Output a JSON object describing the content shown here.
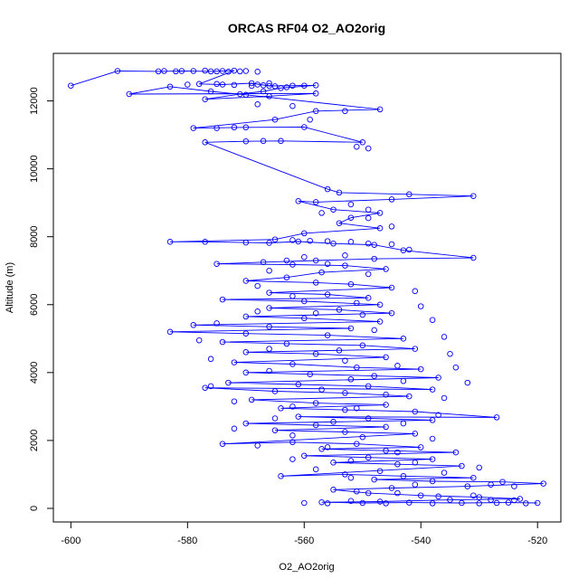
{
  "chart_data": {
    "type": "line",
    "title": "ORCAS RF04 O2_AO2orig",
    "xlabel": "O2_AO2orig",
    "ylabel": "Altitude (m)",
    "xlim": [
      -603,
      -516
    ],
    "ylim": [
      -400,
      13400
    ],
    "xticks": [
      -600,
      -580,
      -560,
      -540,
      -520
    ],
    "yticks": [
      0,
      2000,
      4000,
      6000,
      8000,
      10000,
      12000
    ],
    "grid": false,
    "legend": "none",
    "series_color": "#0000ff",
    "series": [
      {
        "marker": "circle",
        "line": true,
        "points": [
          [
            -600,
            12450
          ],
          [
            -592,
            12880
          ],
          [
            -585,
            12870
          ],
          [
            -581,
            12880
          ],
          [
            -576,
            12870
          ],
          [
            -572,
            12890
          ],
          [
            -578,
            12500
          ],
          [
            -574,
            12480
          ],
          [
            -569,
            12520
          ],
          [
            -566,
            12440
          ],
          [
            -562,
            12450
          ],
          [
            -558,
            12460
          ],
          [
            -564,
            12380
          ],
          [
            -567,
            12280
          ],
          [
            -571,
            12200
          ],
          [
            -577,
            12050
          ],
          [
            -566,
            12140
          ],
          [
            -558,
            12220
          ],
          [
            -590,
            12200
          ],
          [
            -583,
            12420
          ],
          [
            -576,
            12280
          ],
          [
            -570,
            12180
          ],
          [
            -547,
            11750
          ],
          [
            -558,
            11700
          ],
          [
            -565,
            11450
          ],
          [
            -579,
            11200
          ],
          [
            -570,
            11220
          ],
          [
            -560,
            11230
          ],
          [
            -550,
            10780
          ],
          [
            -564,
            10820
          ],
          [
            -570,
            10810
          ],
          [
            -577,
            10780
          ],
          [
            -556,
            9400
          ],
          [
            -554,
            9300
          ],
          [
            -542,
            9250
          ],
          [
            -531,
            9200
          ],
          [
            -545,
            9100
          ],
          [
            -558,
            9020
          ],
          [
            -561,
            9050
          ],
          [
            -555,
            8800
          ],
          [
            -547,
            8700
          ],
          [
            -552,
            8560
          ],
          [
            -554,
            8400
          ],
          [
            -547,
            8250
          ],
          [
            -560,
            8100
          ],
          [
            -565,
            7920
          ],
          [
            -583,
            7850
          ],
          [
            -577,
            7850
          ],
          [
            -570,
            7830
          ],
          [
            -566,
            7820
          ],
          [
            -561,
            7860
          ],
          [
            -555,
            7800
          ],
          [
            -548,
            7760
          ],
          [
            -543,
            7600
          ],
          [
            -531,
            7380
          ],
          [
            -548,
            7350
          ],
          [
            -558,
            7300
          ],
          [
            -567,
            7250
          ],
          [
            -575,
            7200
          ],
          [
            -562,
            7180
          ],
          [
            -553,
            7150
          ],
          [
            -546,
            7050
          ],
          [
            -557,
            6950
          ],
          [
            -563,
            6800
          ],
          [
            -570,
            6700
          ],
          [
            -558,
            6650
          ],
          [
            -552,
            6600
          ],
          [
            -545,
            6500
          ],
          [
            -566,
            6350
          ],
          [
            -556,
            6300
          ],
          [
            -549,
            6200
          ],
          [
            -574,
            6150
          ],
          [
            -560,
            6100
          ],
          [
            -547,
            6000
          ],
          [
            -566,
            5900
          ],
          [
            -554,
            5850
          ],
          [
            -545,
            5750
          ],
          [
            -570,
            5650
          ],
          [
            -560,
            5600
          ],
          [
            -547,
            5500
          ],
          [
            -579,
            5400
          ],
          [
            -566,
            5350
          ],
          [
            -552,
            5300
          ],
          [
            -583,
            5200
          ],
          [
            -570,
            5150
          ],
          [
            -556,
            5100
          ],
          [
            -543,
            5000
          ],
          [
            -574,
            4900
          ],
          [
            -563,
            4850
          ],
          [
            -550,
            4800
          ],
          [
            -541,
            4700
          ],
          [
            -570,
            4600
          ],
          [
            -558,
            4550
          ],
          [
            -546,
            4450
          ],
          [
            -572,
            4300
          ],
          [
            -562,
            4250
          ],
          [
            -551,
            4150
          ],
          [
            -540,
            4100
          ],
          [
            -570,
            4000
          ],
          [
            -559,
            3950
          ],
          [
            -548,
            3900
          ],
          [
            -537,
            3850
          ],
          [
            -573,
            3700
          ],
          [
            -561,
            3650
          ],
          [
            -549,
            3600
          ],
          [
            -538,
            3500
          ],
          [
            -577,
            3550
          ],
          [
            -565,
            3450
          ],
          [
            -553,
            3400
          ],
          [
            -542,
            3300
          ],
          [
            -569,
            3200
          ],
          [
            -558,
            3100
          ],
          [
            -546,
            3050
          ],
          [
            -564,
            2950
          ],
          [
            -553,
            2900
          ],
          [
            -541,
            2850
          ],
          [
            -527,
            2680
          ],
          [
            -561,
            2700
          ],
          [
            -549,
            2650
          ],
          [
            -538,
            2600
          ],
          [
            -570,
            2500
          ],
          [
            -558,
            2450
          ],
          [
            -546,
            2400
          ],
          [
            -565,
            2300
          ],
          [
            -553,
            2250
          ],
          [
            -541,
            2200
          ],
          [
            -574,
            1900
          ],
          [
            -562,
            1950
          ],
          [
            -551,
            1900
          ],
          [
            -540,
            1800
          ],
          [
            -557,
            1750
          ],
          [
            -546,
            1700
          ],
          [
            -534,
            1650
          ],
          [
            -560,
            1550
          ],
          [
            -549,
            1500
          ],
          [
            -538,
            1450
          ],
          [
            -555,
            1350
          ],
          [
            -544,
            1300
          ],
          [
            -533,
            1250
          ],
          [
            -564,
            950
          ],
          [
            -553,
            1000
          ],
          [
            -543,
            950
          ],
          [
            -531,
            900
          ],
          [
            -548,
            850
          ],
          [
            -538,
            800
          ],
          [
            -526,
            780
          ],
          [
            -519,
            730
          ],
          [
            -532,
            650
          ],
          [
            -545,
            600
          ],
          [
            -555,
            550
          ],
          [
            -549,
            450
          ],
          [
            -540,
            380
          ],
          [
            -530,
            330
          ],
          [
            -523,
            280
          ],
          [
            -535,
            250
          ],
          [
            -547,
            200
          ],
          [
            -557,
            180
          ],
          [
            -550,
            160
          ],
          [
            -542,
            170
          ],
          [
            -533,
            160
          ],
          [
            -525,
            170
          ],
          [
            -520,
            160
          ]
        ]
      }
    ],
    "scatter_points": [
      [
        -584,
        12880
      ],
      [
        -582,
        12870
      ],
      [
        -579,
        12880
      ],
      [
        -577,
        12890
      ],
      [
        -575,
        12870
      ],
      [
        -574,
        12880
      ],
      [
        -573,
        12860
      ],
      [
        -571,
        12870
      ],
      [
        -570,
        12880
      ],
      [
        -568,
        12860
      ],
      [
        -580,
        12480
      ],
      [
        -575,
        12500
      ],
      [
        -572,
        12470
      ],
      [
        -569,
        12440
      ],
      [
        -568,
        12480
      ],
      [
        -567,
        12460
      ],
      [
        -565,
        12430
      ],
      [
        -563,
        12400
      ],
      [
        -566,
        12520
      ],
      [
        -560,
        12450
      ],
      [
        -568,
        11900
      ],
      [
        -562,
        11850
      ],
      [
        -553,
        11700
      ],
      [
        -559,
        11450
      ],
      [
        -575,
        11200
      ],
      [
        -572,
        11220
      ],
      [
        -551,
        10650
      ],
      [
        -549,
        10600
      ],
      [
        -567,
        10820
      ],
      [
        -552,
        8950
      ],
      [
        -549,
        8800
      ],
      [
        -557,
        8700
      ],
      [
        -549,
        8550
      ],
      [
        -545,
        8300
      ],
      [
        -562,
        7900
      ],
      [
        -559,
        7880
      ],
      [
        -556,
        7870
      ],
      [
        -552,
        7850
      ],
      [
        -549,
        7800
      ],
      [
        -545,
        7780
      ],
      [
        -542,
        7620
      ],
      [
        -553,
        7450
      ],
      [
        -560,
        7400
      ],
      [
        -563,
        7300
      ],
      [
        -556,
        7200
      ],
      [
        -566,
        7000
      ],
      [
        -549,
        6900
      ],
      [
        -568,
        6550
      ],
      [
        -541,
        6400
      ],
      [
        -562,
        6250
      ],
      [
        -551,
        6050
      ],
      [
        -540,
        5950
      ],
      [
        -568,
        5800
      ],
      [
        -558,
        5750
      ],
      [
        -550,
        5700
      ],
      [
        -538,
        5550
      ],
      [
        -575,
        5450
      ],
      [
        -548,
        5250
      ],
      [
        -536,
        5050
      ],
      [
        -578,
        4950
      ],
      [
        -566,
        4700
      ],
      [
        -554,
        4650
      ],
      [
        -535,
        4550
      ],
      [
        -576,
        4400
      ],
      [
        -553,
        4350
      ],
      [
        -544,
        4200
      ],
      [
        -534,
        4150
      ],
      [
        -566,
        4050
      ],
      [
        -552,
        3800
      ],
      [
        -543,
        3750
      ],
      [
        -532,
        3700
      ],
      [
        -576,
        3600
      ],
      [
        -557,
        3500
      ],
      [
        -546,
        3350
      ],
      [
        -536,
        3250
      ],
      [
        -572,
        3150
      ],
      [
        -562,
        3000
      ],
      [
        -551,
        2950
      ],
      [
        -537,
        2750
      ],
      [
        -565,
        2650
      ],
      [
        -555,
        2550
      ],
      [
        -543,
        2500
      ],
      [
        -572,
        2350
      ],
      [
        -562,
        2150
      ],
      [
        -550,
        2100
      ],
      [
        -538,
        2050
      ],
      [
        -568,
        1850
      ],
      [
        -556,
        1800
      ],
      [
        -544,
        1650
      ],
      [
        -562,
        1450
      ],
      [
        -552,
        1400
      ],
      [
        -541,
        1350
      ],
      [
        -530,
        1200
      ],
      [
        -558,
        1150
      ],
      [
        -547,
        1100
      ],
      [
        -536,
        1050
      ],
      [
        -552,
        900
      ],
      [
        -541,
        700
      ],
      [
        -528,
        700
      ],
      [
        -524,
        650
      ],
      [
        -551,
        500
      ],
      [
        -544,
        450
      ],
      [
        -537,
        350
      ],
      [
        -531,
        380
      ],
      [
        -528,
        250
      ],
      [
        -524,
        240
      ],
      [
        -552,
        220
      ],
      [
        -546,
        150
      ],
      [
        -538,
        150
      ],
      [
        -530,
        150
      ],
      [
        -527,
        160
      ],
      [
        -522,
        150
      ],
      [
        -560,
        160
      ],
      [
        -556,
        150
      ]
    ]
  }
}
